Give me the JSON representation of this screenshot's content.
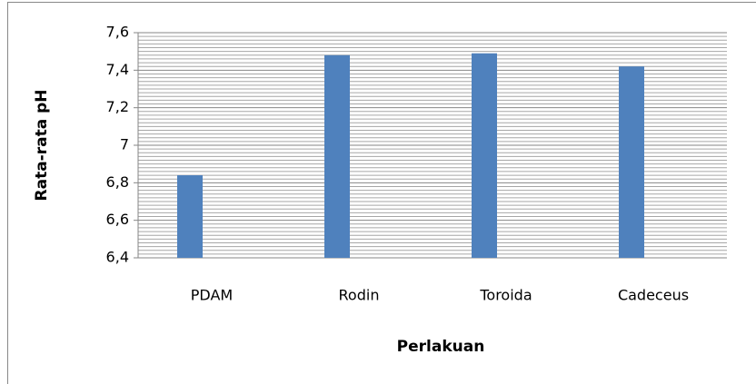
{
  "chart_data": {
    "type": "bar",
    "x_label": "Perlakuan",
    "y_label": "Rata-rata pH",
    "categories": [
      "PDAM",
      "Rodin",
      "Toroida",
      "Cadeceus"
    ],
    "values": [
      6.84,
      7.48,
      7.49,
      7.42
    ],
    "color": "#4f81bd",
    "ylim": [
      6.4,
      7.6
    ],
    "yticks": [
      {
        "value": 6.4,
        "label": "6,4"
      },
      {
        "value": 6.6,
        "label": "6,6"
      },
      {
        "value": 6.8,
        "label": "6,8"
      },
      7,
      {
        "value": 7.2,
        "label": "7,2"
      },
      {
        "value": 7.4,
        "label": "7,4"
      },
      {
        "value": 7.6,
        "label": "7,6"
      }
    ],
    "grid": true
  }
}
